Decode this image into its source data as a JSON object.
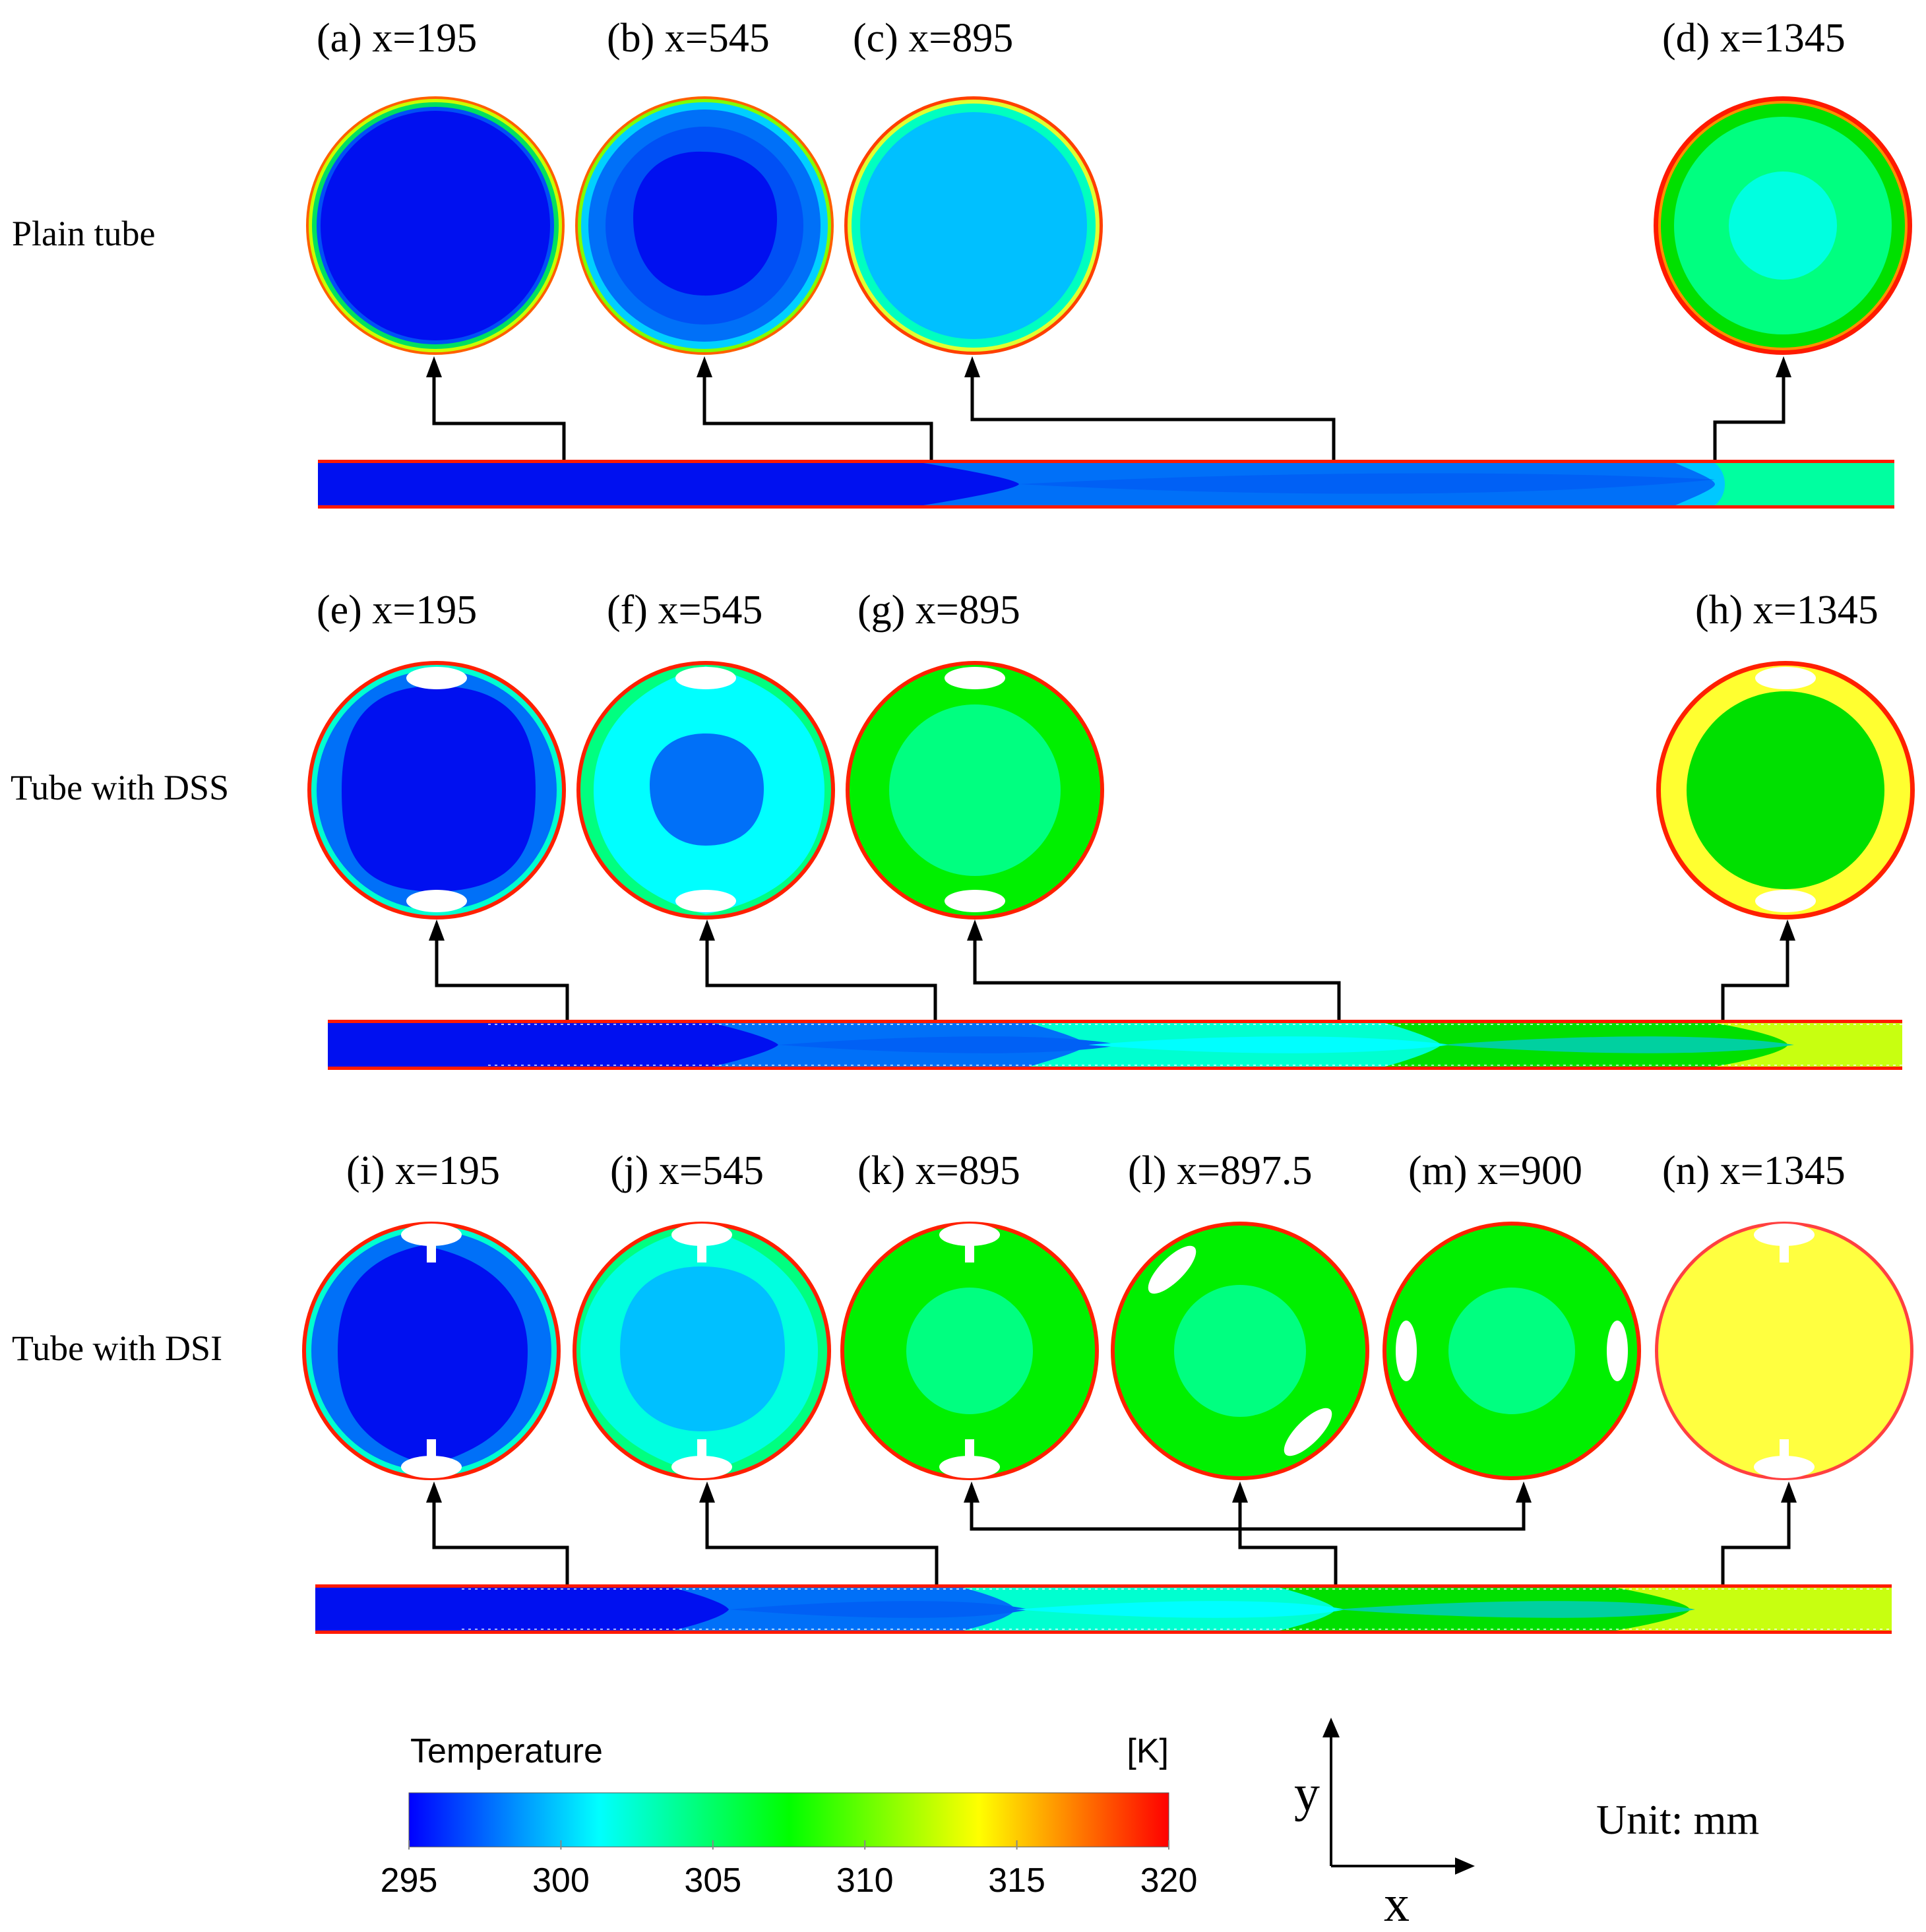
{
  "figure": {
    "rows": [
      {
        "label": "Plain tube",
        "sections": [
          {
            "caption": "(a) x=195"
          },
          {
            "caption": "(b) x=545"
          },
          {
            "caption": "(c) x=895"
          },
          {
            "caption": "(d) x=1345"
          }
        ]
      },
      {
        "label": "Tube with DSS",
        "sections": [
          {
            "caption": "(e) x=195"
          },
          {
            "caption": "(f) x=545"
          },
          {
            "caption": "(g) x=895"
          },
          {
            "caption": "(h) x=1345"
          }
        ]
      },
      {
        "label": "Tube with DSI",
        "sections": [
          {
            "caption": "(i) x=195"
          },
          {
            "caption": "(j) x=545"
          },
          {
            "caption": "(k) x=895"
          },
          {
            "caption": "(l) x=897.5"
          },
          {
            "caption": "(m) x=900"
          },
          {
            "caption": "(n) x=1345"
          }
        ]
      }
    ],
    "colorbar": {
      "title": "Temperature",
      "unit": "[K]",
      "ticks": [
        "295",
        "300",
        "305",
        "310",
        "315",
        "320"
      ],
      "colors": [
        "#0000ff",
        "#0080ff",
        "#00ffff",
        "#00ff80",
        "#00ff00",
        "#80ff00",
        "#ffff00",
        "#ff8000",
        "#ff0000"
      ]
    },
    "axes": {
      "y_label": "y",
      "x_label": "x"
    },
    "unit_note": "Unit: mm",
    "palette": {
      "c295": "#0010f0",
      "c299": "#0060f5",
      "c301": "#00c0ff",
      "c304": "#00ffe0",
      "c307": "#00ff80",
      "c310": "#00f000",
      "c313": "#b8ff10",
      "c316": "#ffff30",
      "c320": "#ff1a00"
    }
  }
}
